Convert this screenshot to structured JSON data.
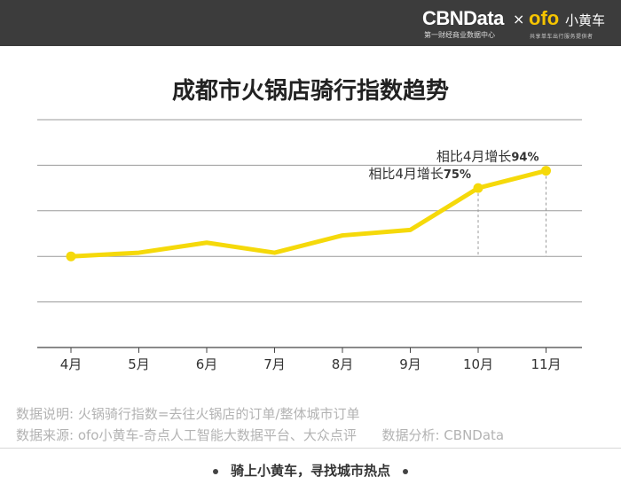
{
  "header": {
    "brand_cbn": "CBNData",
    "brand_cbn_sub": "第一财经商业数据中心",
    "brand_x": "×",
    "brand_ofo": "ofo",
    "brand_ofo_cn": "小黄车",
    "brand_ofo_sub": "共享单车出行服务提供者"
  },
  "chart_data": {
    "type": "line",
    "title": "成都市火锅店骑行指数趋势",
    "categories": [
      "4月",
      "5月",
      "6月",
      "7月",
      "8月",
      "9月",
      "10月",
      "11月"
    ],
    "series": [
      {
        "values": [
          100,
          104,
          115,
          104,
          123,
          129,
          175,
          194
        ]
      }
    ],
    "ylim": [
      0,
      250
    ],
    "grid": true,
    "annotations": [
      {
        "category": "10月",
        "prefix": "相比4月增长",
        "value": "75%"
      },
      {
        "category": "11月",
        "prefix": "相比4月增长",
        "value": "94%"
      }
    ],
    "colors": {
      "line": "#f5d90a",
      "grid": "#9a9a9a",
      "dash": "#999999"
    }
  },
  "notes": {
    "line1": "数据说明: 火锅骑行指数=去往火锅店的订单/整体城市订单",
    "line2": "数据来源: ofo小黄车-奇点人工智能大数据平台、大众点评      数据分析: CBNData"
  },
  "footer": {
    "slogan": "骑上小黄车，寻找城市热点"
  }
}
